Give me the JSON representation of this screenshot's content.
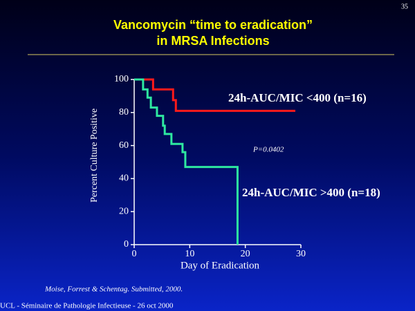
{
  "page_number": "35",
  "citation": "Moise, Forrest & Schentag. Submitted, 2000.",
  "footer": "UCL - Séminaire de Pathologie Infectieuse - 26 oct 2000",
  "chart_data": {
    "type": "step",
    "title": [
      "Vancomycin “time to eradication”",
      "in MRSA Infections"
    ],
    "x_label": "Day of Eradication",
    "y_label": "Percent Culture Positive",
    "annotation": "P=0.0402",
    "xlim": [
      0,
      30
    ],
    "xticks": [
      0,
      10,
      20,
      30
    ],
    "ylim": [
      0,
      100
    ],
    "yticks": [
      0,
      20,
      40,
      60,
      80,
      100
    ],
    "series": [
      {
        "name": "24h-AUC/MIC <400 (n=16)",
        "color": "#ff1a1a",
        "x": [
          0,
          3.4,
          7,
          7.5,
          29
        ],
        "values": [
          100,
          94,
          87.5,
          81,
          81
        ]
      },
      {
        "name": "24h-AUC/MIC >400 (n=18)",
        "color": "#2ee8a0",
        "x": [
          0,
          1.6,
          2.4,
          3,
          4.1,
          5.2,
          5.5,
          6.7,
          8.7,
          9.2,
          18.6
        ],
        "values": [
          100,
          94,
          89,
          83,
          78,
          72,
          67,
          61,
          56,
          47,
          0
        ]
      }
    ]
  }
}
